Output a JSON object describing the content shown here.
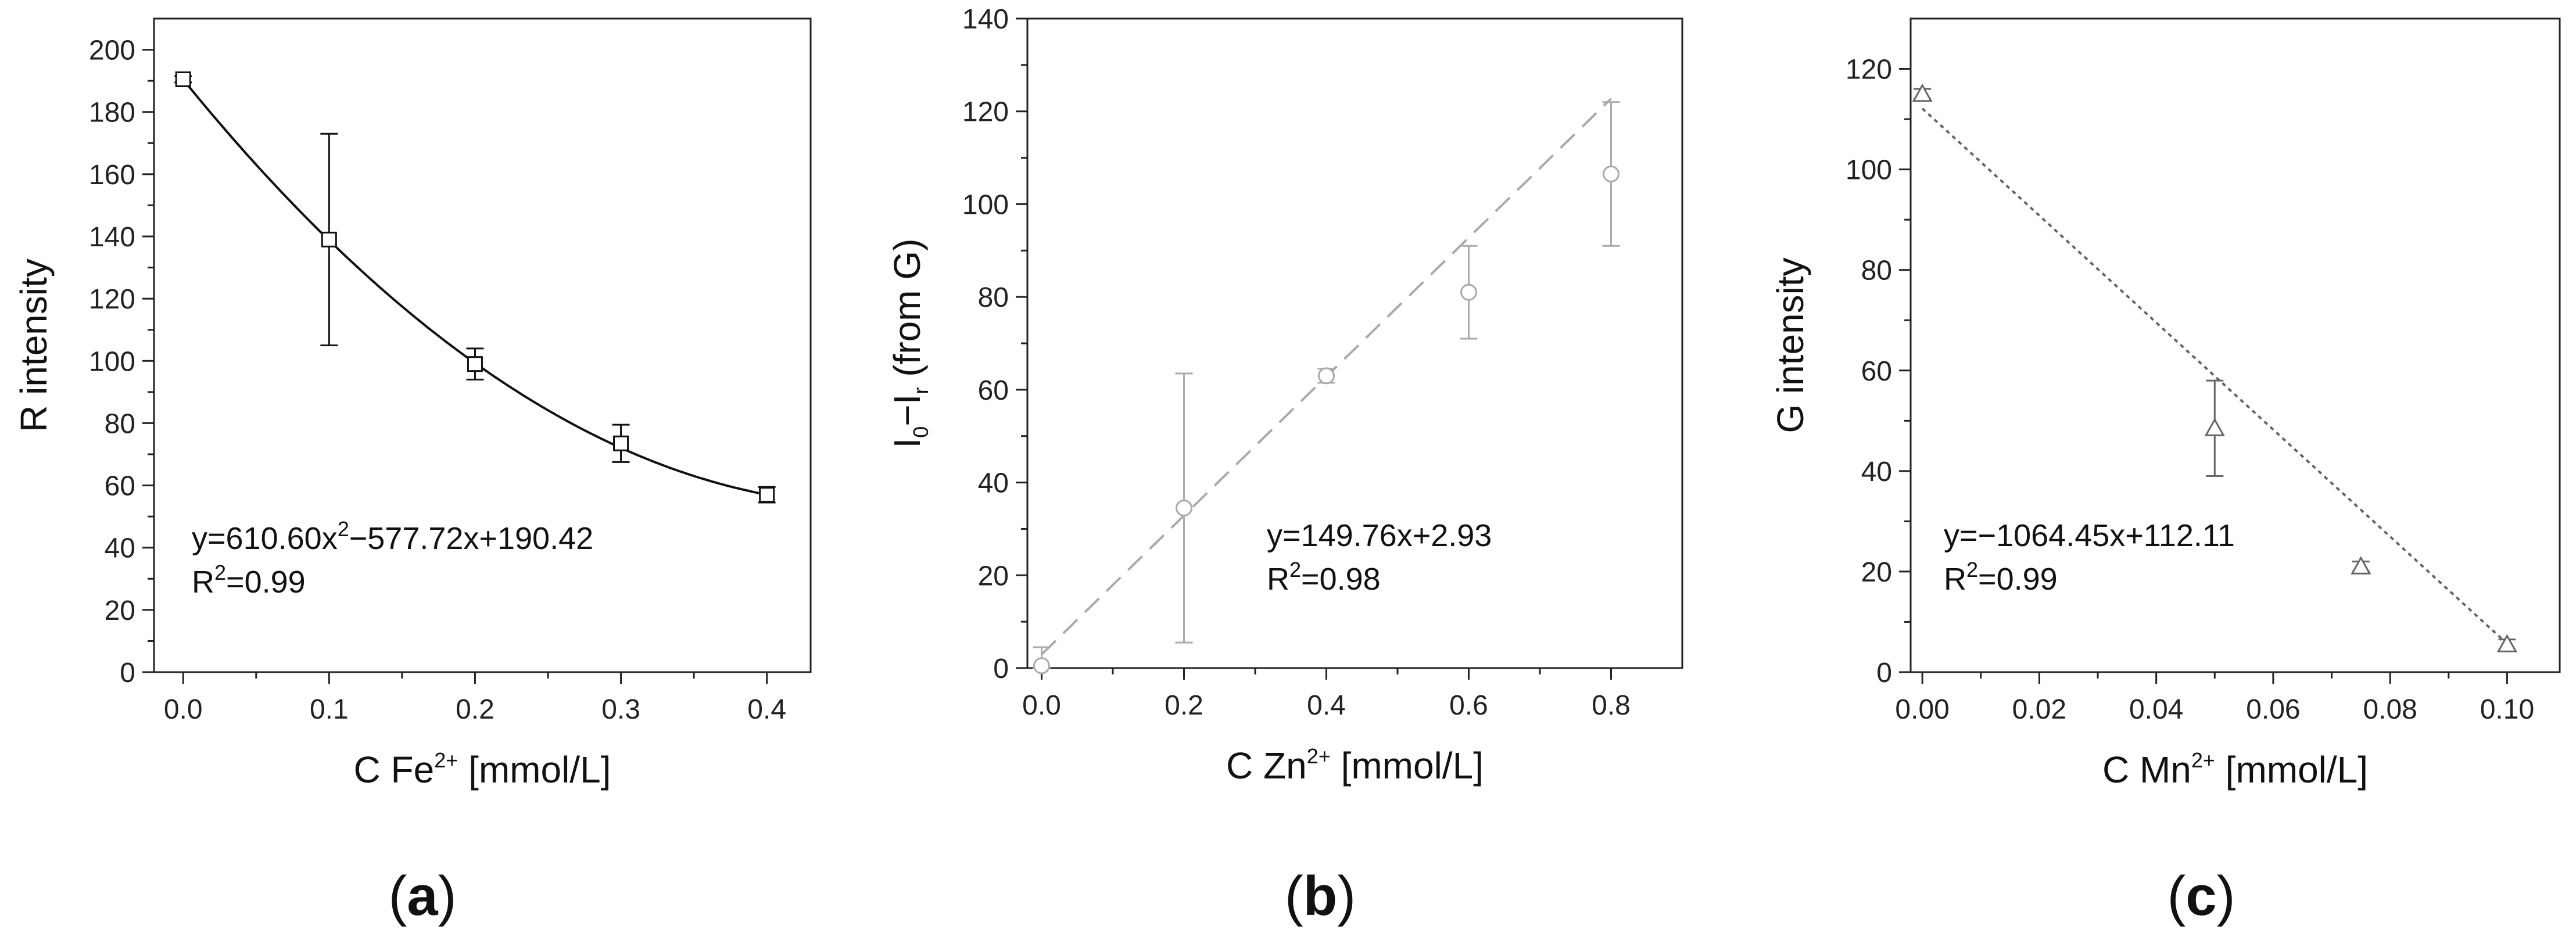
{
  "chart_data": [
    {
      "type": "scatter",
      "panel": "(a)",
      "panel_letter": "a",
      "xlabel": "C Fe",
      "xlabel_sup": "2+",
      "xlabel_suffix": " [mmol/L]",
      "ylabel": "R intensity",
      "xlim": [
        -0.02,
        0.43
      ],
      "ylim": [
        0,
        210
      ],
      "xticks": [
        0.0,
        0.1,
        0.2,
        0.3,
        0.4
      ],
      "xtick_labels": [
        "0.0",
        "0.1",
        "0.2",
        "0.3",
        "0.4"
      ],
      "yticks": [
        0,
        20,
        40,
        60,
        80,
        100,
        120,
        140,
        160,
        180,
        200
      ],
      "ytick_labels": [
        "0",
        "20",
        "40",
        "60",
        "80",
        "100",
        "120",
        "140",
        "160",
        "180",
        "200"
      ],
      "marker": "square",
      "color": "#111111",
      "fit_style": "solid",
      "series": [
        {
          "name": "R intensity",
          "x": [
            0.0,
            0.1,
            0.2,
            0.3,
            0.4
          ],
          "y": [
            190.5,
            139,
            99,
            73.5,
            57
          ],
          "err": [
            1,
            34,
            5,
            6,
            2.5
          ]
        }
      ],
      "fit": {
        "kind": "quadratic",
        "coef": [
          610.6,
          -577.72,
          190.42
        ],
        "x_range": [
          0.0,
          0.4
        ]
      },
      "equation": {
        "pre": "y=610.60x",
        "pre_sup": "2",
        "post": "−577.72x+190.42",
        "r2_pre": "R",
        "r2_sup": "2",
        "r2_post": "=0.99"
      }
    },
    {
      "type": "scatter",
      "panel": "(b)",
      "panel_letter": "b",
      "xlabel": "C Zn",
      "xlabel_sup": "2+",
      "xlabel_suffix": " [mmol/L]",
      "ylabel": "I",
      "ylabel_sub1": "0",
      "ylabel_mid": "−I",
      "ylabel_sub2": "r",
      "ylabel_suffix": " (from G)",
      "xlim": [
        -0.02,
        0.9
      ],
      "ylim": [
        0,
        140
      ],
      "xticks": [
        0.0,
        0.2,
        0.4,
        0.6,
        0.8
      ],
      "xtick_labels": [
        "0.0",
        "0.2",
        "0.4",
        "0.6",
        "0.8"
      ],
      "yticks": [
        0,
        20,
        40,
        60,
        80,
        100,
        120,
        140
      ],
      "ytick_labels": [
        "0",
        "20",
        "40",
        "60",
        "80",
        "100",
        "120",
        "140"
      ],
      "marker": "circle",
      "color": "#aaaaaa",
      "fit_style": "dashed",
      "series": [
        {
          "name": "I0-Ir",
          "x": [
            0.0,
            0.2,
            0.4,
            0.6,
            0.8
          ],
          "y": [
            0.5,
            34.5,
            63,
            81,
            106.5
          ],
          "err": [
            4,
            29,
            1.5,
            10,
            15.5
          ]
        }
      ],
      "fit": {
        "kind": "linear",
        "coef": [
          149.76,
          2.93
        ],
        "x_range": [
          0.0,
          0.8
        ]
      },
      "equation": {
        "pre": "y=149.76x+2.93",
        "pre_sup": "",
        "post": "",
        "r2_pre": "R",
        "r2_sup": "2",
        "r2_post": "=0.98"
      }
    },
    {
      "type": "scatter",
      "panel": "(c)",
      "panel_letter": "c",
      "xlabel": "C Mn",
      "xlabel_sup": "2+",
      "xlabel_suffix": " [mmol/L]",
      "ylabel": "G intensity",
      "xlim": [
        -0.002,
        0.109
      ],
      "ylim": [
        0,
        130
      ],
      "xticks": [
        0.0,
        0.02,
        0.04,
        0.06,
        0.08,
        0.1
      ],
      "xtick_labels": [
        "0.00",
        "0.02",
        "0.04",
        "0.06",
        "0.08",
        "0.10"
      ],
      "yticks": [
        0,
        20,
        40,
        60,
        80,
        100,
        120
      ],
      "ytick_labels": [
        "0",
        "20",
        "40",
        "60",
        "80",
        "100",
        "120"
      ],
      "marker": "triangle",
      "color": "#666666",
      "fit_style": "dotted",
      "series": [
        {
          "name": "G intensity",
          "x": [
            0.0,
            0.05,
            0.075,
            0.1
          ],
          "y": [
            115,
            48.5,
            21,
            5.5
          ],
          "err": [
            1,
            9.5,
            1,
            1
          ]
        }
      ],
      "fit": {
        "kind": "linear",
        "coef": [
          -1064.45,
          112.11
        ],
        "x_range": [
          0.0,
          0.1
        ]
      },
      "equation": {
        "pre": "y=−1064.45x+112.11",
        "pre_sup": "",
        "post": "",
        "r2_pre": "R",
        "r2_sup": "2",
        "r2_post": "=0.99"
      }
    }
  ]
}
